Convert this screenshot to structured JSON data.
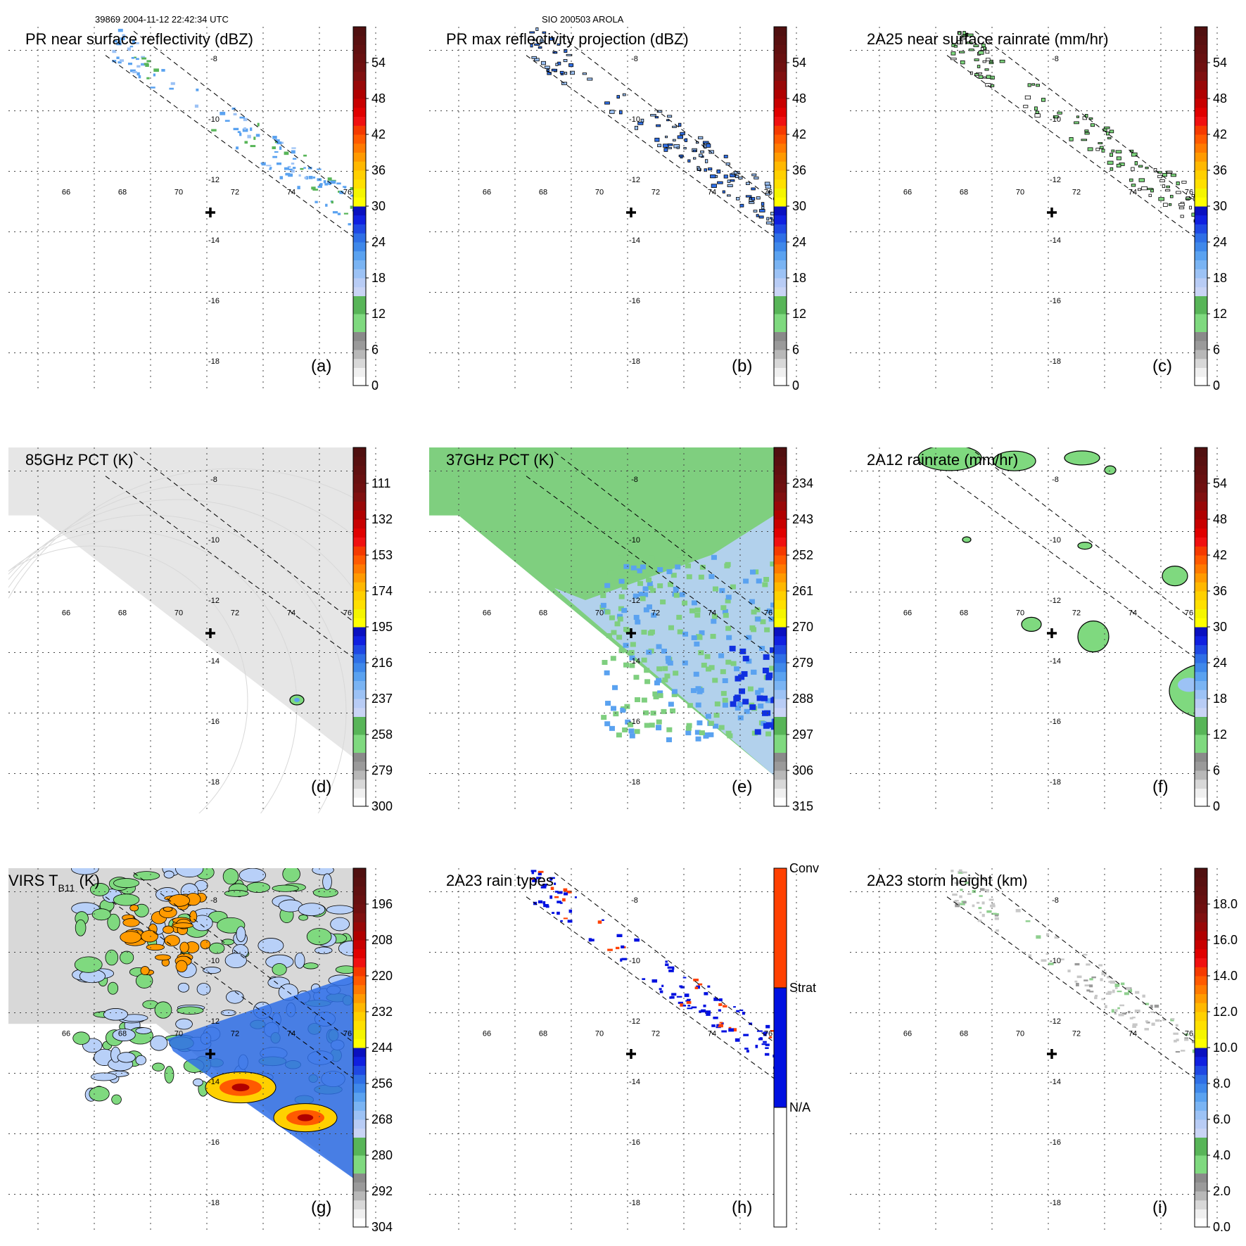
{
  "header": {
    "left": "39869 2004-11-12 22:42:34 UTC",
    "center": "SIO 200503 AROLA"
  },
  "grid": {
    "lon_ticks": [
      "66",
      "68",
      "70",
      "72",
      "74",
      "76"
    ],
    "lat_ticks": [
      "-8",
      "-10",
      "-12",
      "-14",
      "-16",
      "-18"
    ],
    "center_marker": {
      "lon": 71.0,
      "lat": -13.0
    }
  },
  "chart_data": [
    {
      "id": "a",
      "type": "heatmap",
      "title": "PR near surface reflectivity (dBZ)",
      "panel_label": "(a)",
      "colorbar": {
        "ticks": [
          "0",
          "6",
          "12",
          "18",
          "24",
          "30",
          "36",
          "42",
          "48",
          "54"
        ],
        "range": [
          0,
          60
        ]
      },
      "field": "PR swath, scattered light blue echoes, green near 76E"
    },
    {
      "id": "b",
      "type": "heatmap",
      "title": "PR max reflectivity projection (dBZ)",
      "panel_label": "(b)",
      "colorbar": {
        "ticks": [
          "0",
          "6",
          "12",
          "18",
          "24",
          "30",
          "36",
          "42",
          "48",
          "54"
        ],
        "range": [
          0,
          60
        ]
      }
    },
    {
      "id": "c",
      "type": "heatmap",
      "title": "2A25 near surface rainrate (mm/hr)",
      "panel_label": "(c)",
      "colorbar": {
        "ticks": [
          "0",
          "6",
          "12",
          "18",
          "24",
          "30",
          "36",
          "42",
          "48",
          "54"
        ],
        "range": [
          0,
          60
        ]
      }
    },
    {
      "id": "d",
      "type": "heatmap",
      "title": "85GHz PCT (K)",
      "panel_label": "(d)",
      "colorbar": {
        "ticks": [
          "300",
          "279",
          "258",
          "237",
          "216",
          "195",
          "174",
          "153",
          "132",
          "111"
        ],
        "range": [
          300,
          90
        ]
      }
    },
    {
      "id": "e",
      "type": "heatmap",
      "title": "37GHz PCT (K)",
      "panel_label": "(e)",
      "colorbar": {
        "ticks": [
          "315",
          "306",
          "297",
          "288",
          "279",
          "270",
          "261",
          "252",
          "243",
          "234"
        ],
        "range": [
          315,
          225
        ]
      }
    },
    {
      "id": "f",
      "type": "heatmap",
      "title": "2A12 rainrate (mm/hr)",
      "panel_label": "(f)",
      "colorbar": {
        "ticks": [
          "0",
          "6",
          "12",
          "18",
          "24",
          "30",
          "36",
          "42",
          "48",
          "54"
        ],
        "range": [
          0,
          60
        ]
      }
    },
    {
      "id": "g",
      "type": "heatmap",
      "title_main": "VIRS T",
      "title_sub": "B11",
      "title_tail": " (K)",
      "panel_label": "(g)",
      "colorbar": {
        "ticks": [
          "304",
          "292",
          "280",
          "268",
          "256",
          "244",
          "232",
          "220",
          "208",
          "196"
        ],
        "range": [
          304,
          184
        ]
      }
    },
    {
      "id": "h",
      "type": "heatmap",
      "title": "2A23 rain types",
      "panel_label": "(h)",
      "colorbar": {
        "categorical": [
          "N/A",
          "Strat",
          "Conv"
        ]
      }
    },
    {
      "id": "i",
      "type": "heatmap",
      "title": "2A23 storm height (km)",
      "panel_label": "(i)",
      "colorbar": {
        "ticks": [
          "0.0",
          "2.0",
          "4.0",
          "6.0",
          "8.0",
          "10.0",
          "12.0",
          "14.0",
          "16.0",
          "18.0"
        ],
        "range": [
          0,
          20
        ]
      }
    }
  ],
  "colors": {
    "scale": [
      "#ffffff",
      "#d0d0d0",
      "#9a9a9a",
      "#7fd97f",
      "#58b558",
      "#c9d4f5",
      "#9cc2f5",
      "#5aa2f0",
      "#2f6fe6",
      "#1020e0",
      "#f5f500",
      "#ffd000",
      "#ff9a00",
      "#ff5a00",
      "#f01010",
      "#b00000",
      "#601010"
    ],
    "pct85_field": "#e6e6e6",
    "pct37_green": "#7fcf7f",
    "pct37_blue": "#b8d0f8",
    "virs_gray": "#d8d8d8",
    "conv": "#ff4000",
    "strat": "#0010e0"
  }
}
